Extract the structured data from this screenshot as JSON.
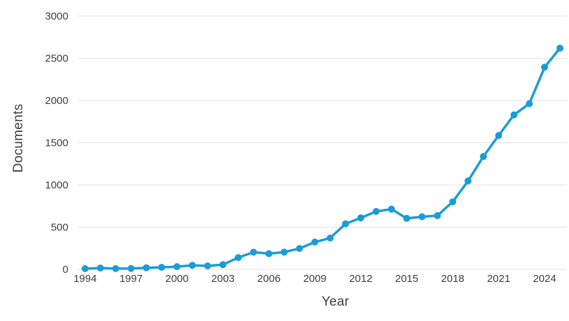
{
  "chart": {
    "ylabel": "Documents",
    "xlabel": "Year"
  },
  "chart_data": {
    "type": "line",
    "xlabel": "Year",
    "ylabel": "Documents",
    "x": [
      1994,
      1995,
      1996,
      1997,
      1998,
      1999,
      2000,
      2001,
      2002,
      2003,
      2004,
      2005,
      2006,
      2007,
      2008,
      2009,
      2010,
      2011,
      2012,
      2013,
      2014,
      2015,
      2016,
      2017,
      2018,
      2019,
      2020,
      2021,
      2022,
      2023,
      2024,
      2025
    ],
    "series": [
      {
        "name": "Documents",
        "values": [
          8,
          16,
          9,
          11,
          19,
          24,
          32,
          48,
          41,
          55,
          140,
          203,
          186,
          204,
          247,
          323,
          371,
          540,
          610,
          686,
          713,
          604,
          623,
          636,
          800,
          1046,
          1336,
          1586,
          1830,
          1962,
          2394,
          2620
        ]
      }
    ],
    "x_tick_labels": [
      "1994",
      "1997",
      "2000",
      "2003",
      "2006",
      "2009",
      "2012",
      "2015",
      "2018",
      "2021",
      "2024"
    ],
    "y_ticks": [
      0,
      500,
      1000,
      1500,
      2000,
      2500,
      3000
    ],
    "xlim": [
      1994,
      2025
    ],
    "ylim": [
      0,
      3000
    ],
    "grid": "horizontal",
    "legend_position": "none",
    "colors": {
      "line": "#1b9cd8",
      "grid": "#e2e2e2",
      "tick_text": "#3c3c44",
      "axis_title_text": "#3c3c44",
      "background": "#ffffff"
    }
  }
}
